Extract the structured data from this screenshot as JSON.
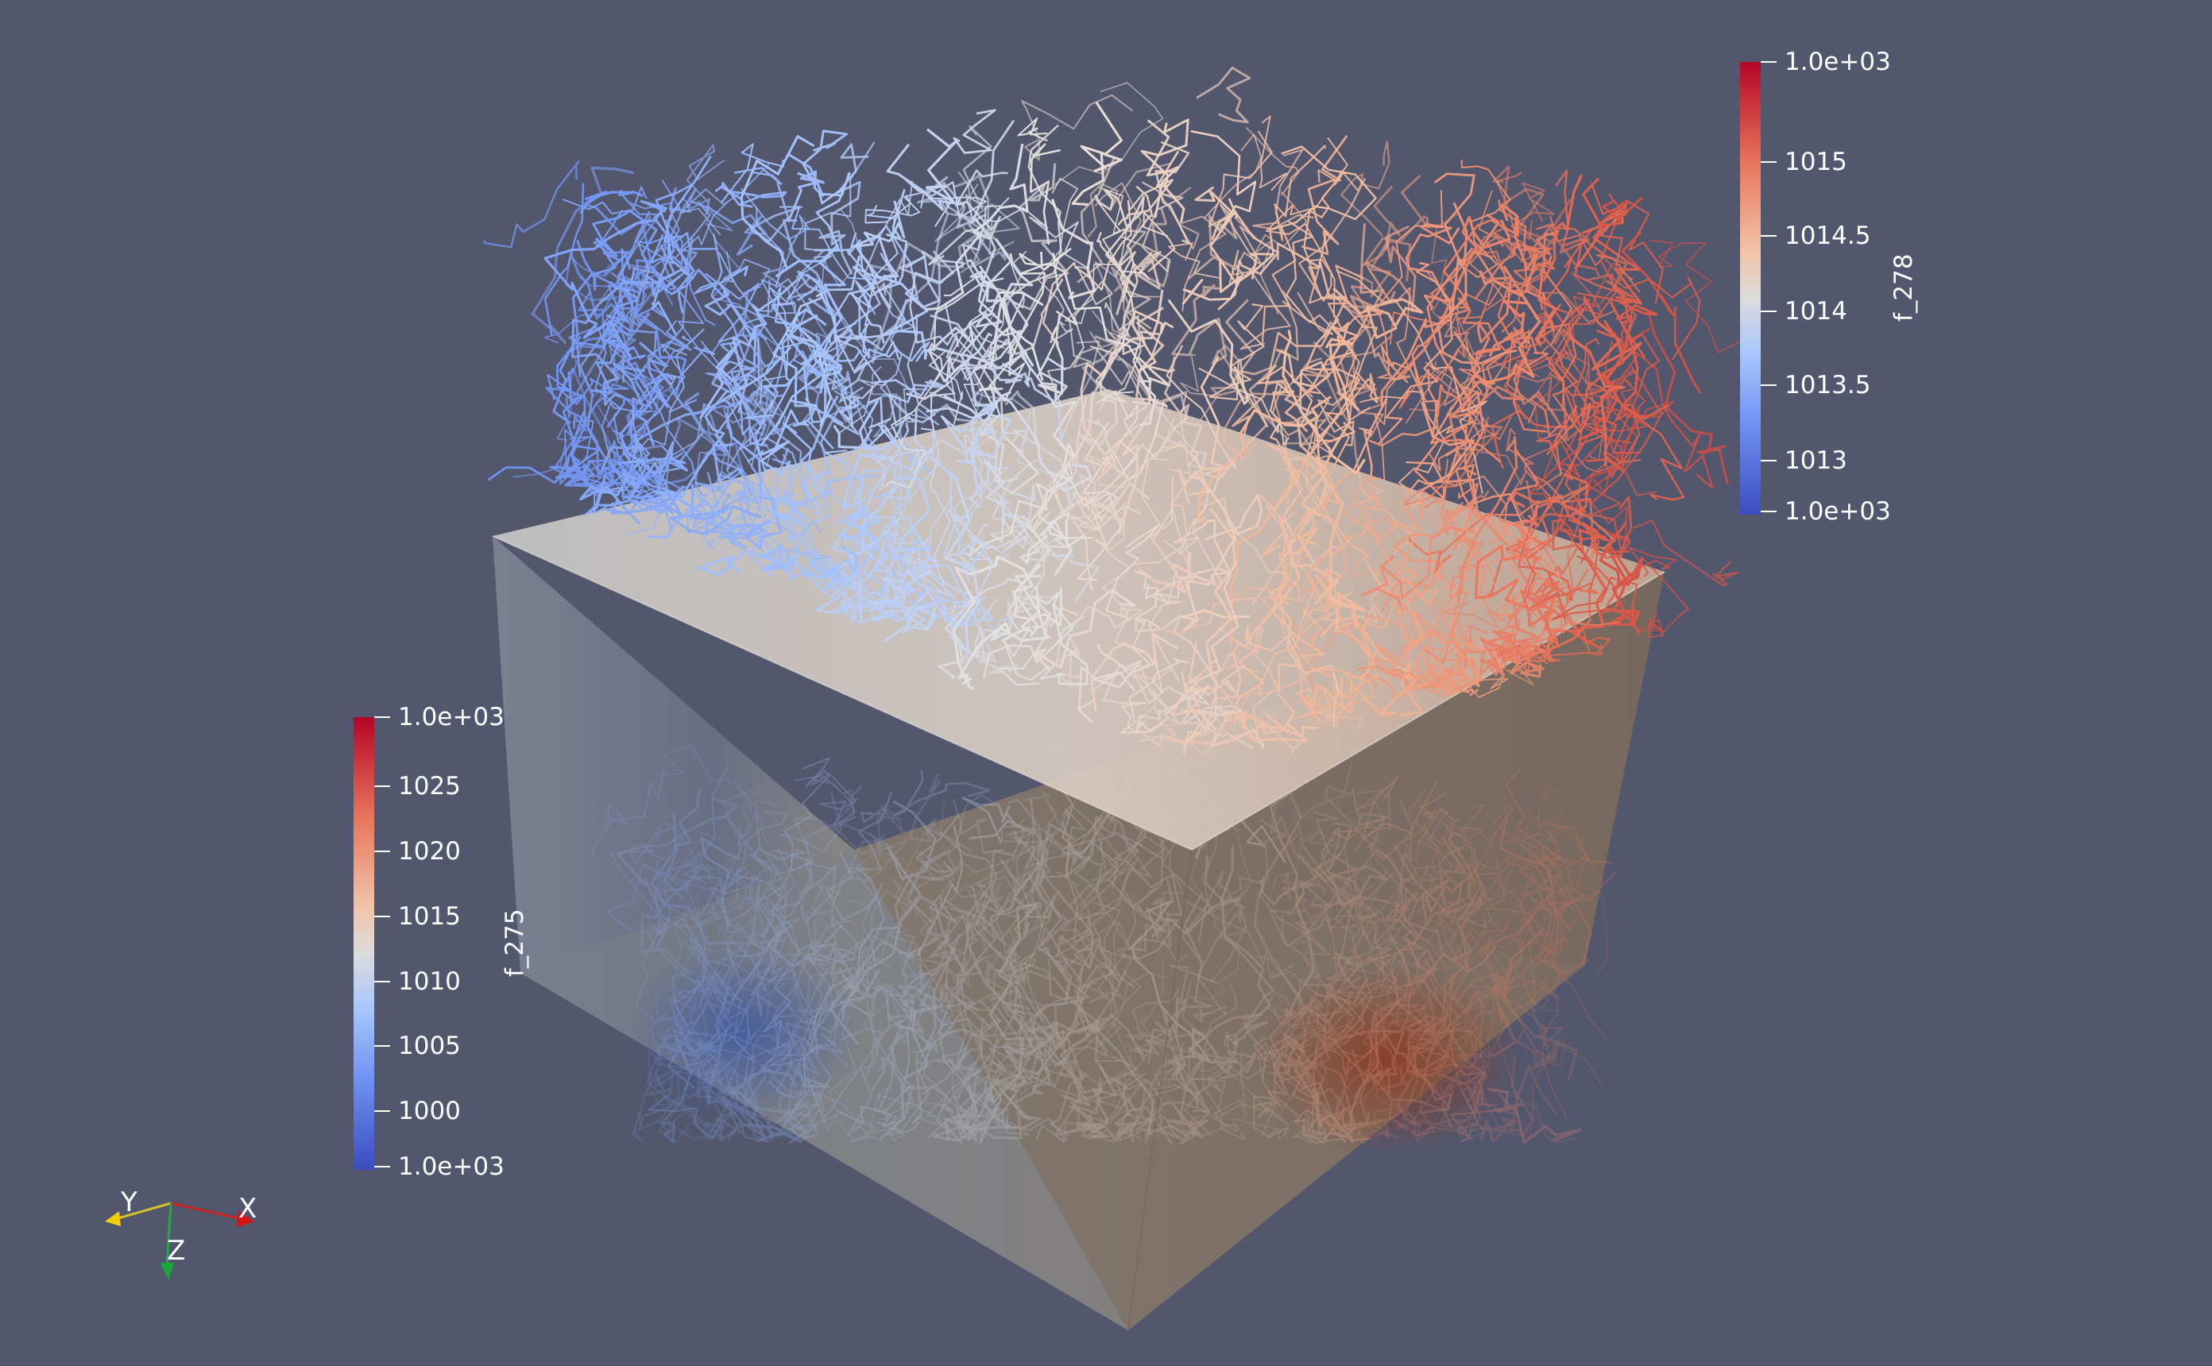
{
  "scalar_bar_top": {
    "title": "f_278",
    "labels": [
      "1.0e+03",
      "1015",
      "1014.5",
      "1014",
      "1013.5",
      "1013",
      "1.0e+03"
    ]
  },
  "scalar_bar_left": {
    "title": "f_275",
    "labels": [
      "1.0e+03",
      "1025",
      "1020",
      "1015",
      "1010",
      "1005",
      "1000",
      "1.0e+03"
    ]
  },
  "orientation_axes": {
    "x": "X",
    "y": "Y",
    "z": "Z"
  },
  "colors": {
    "background": "#52576e",
    "cold": "#3b4cc0",
    "neutral": "#dddcdc",
    "warm": "#b40426"
  }
}
